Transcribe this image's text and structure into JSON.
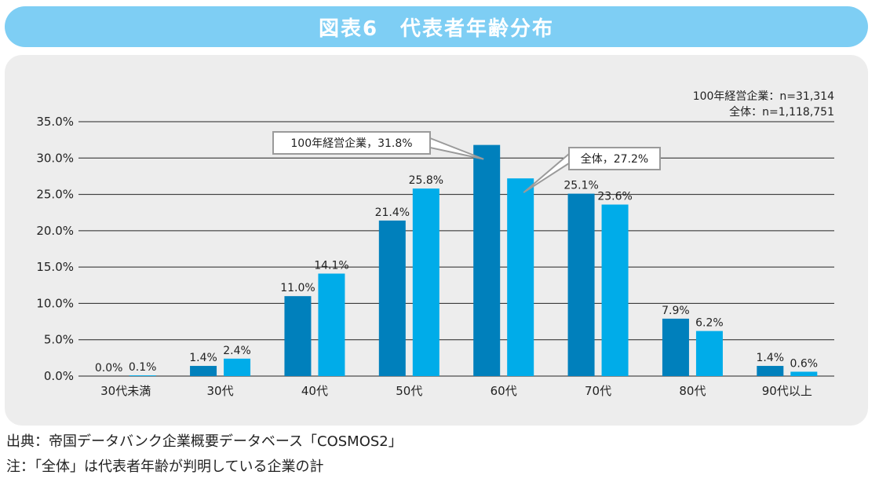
{
  "header": {
    "title": "図表6　代表者年齢分布"
  },
  "sample_sizes": [
    "100年経営企業：n=31,314",
    "全体：n=1,118,751"
  ],
  "chart_data": {
    "type": "bar",
    "categories": [
      "30代未満",
      "30代",
      "40代",
      "50代",
      "60代",
      "70代",
      "80代",
      "90代以上"
    ],
    "series": [
      {
        "name": "100年経営企業",
        "values": [
          0.0,
          1.4,
          11.0,
          21.4,
          31.8,
          25.1,
          7.9,
          1.4
        ],
        "color": "#0080bc"
      },
      {
        "name": "全体",
        "values": [
          0.1,
          2.4,
          14.1,
          25.8,
          27.2,
          23.6,
          6.2,
          0.6
        ],
        "color": "#00ace9"
      }
    ],
    "data_labels": [
      [
        "0.0%",
        "1.4%",
        "11.0%",
        "21.4%",
        "",
        "25.1%",
        "7.9%",
        "1.4%"
      ],
      [
        "0.1%",
        "2.4%",
        "14.1%",
        "25.8%",
        "",
        "23.6%",
        "6.2%",
        "0.6%"
      ]
    ],
    "y_ticks": [
      "0.0%",
      "5.0%",
      "10.0%",
      "15.0%",
      "20.0%",
      "25.0%",
      "30.0%",
      "35.0%"
    ],
    "ylim": [
      0,
      35
    ],
    "grid": true,
    "callouts": [
      {
        "series": 0,
        "category": 4,
        "text": "100年経営企業，31.8%"
      },
      {
        "series": 1,
        "category": 4,
        "text": "全体，27.2%"
      }
    ]
  },
  "footnotes": [
    "出典：帝国データバンク企業概要データベース「COSMOS2」",
    "注：「全体」は代表者年齢が判明している企業の計"
  ]
}
